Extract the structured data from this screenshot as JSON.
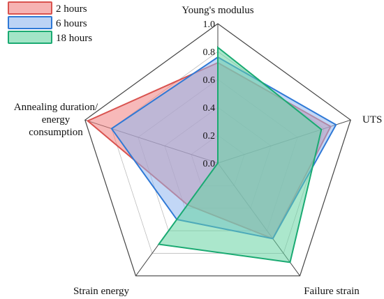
{
  "chart_data": {
    "type": "radar",
    "axes": [
      "Young's modulus",
      "UTS",
      "Failure strain",
      "Strain energy",
      "Annealing duration/ energy consumption"
    ],
    "axis_label_lines": [
      [
        "Young's modulus"
      ],
      [
        "UTS"
      ],
      [
        "Failure strain"
      ],
      [
        "Strain energy"
      ],
      [
        "Annealing duration/",
        "energy",
        "consumption"
      ]
    ],
    "ticks": [
      "0.0",
      "0.2",
      "0.4",
      "0.6",
      "0.8",
      "1.0"
    ],
    "range": [
      0,
      1
    ],
    "grid": true,
    "legend_position": "top-left",
    "series": [
      {
        "name": "2 hours",
        "values": [
          0.72,
          0.85,
          0.67,
          0.37,
          0.98
        ],
        "fill": "#f08080",
        "stroke": "#d9534f"
      },
      {
        "name": "6 hours",
        "values": [
          0.76,
          0.89,
          0.67,
          0.5,
          0.8
        ],
        "fill": "#8fb6ee",
        "stroke": "#2f79d6"
      },
      {
        "name": "18 hours",
        "values": [
          0.83,
          0.78,
          0.88,
          0.72,
          0.0
        ],
        "fill": "#66d3a2",
        "stroke": "#1aaa72"
      }
    ]
  }
}
